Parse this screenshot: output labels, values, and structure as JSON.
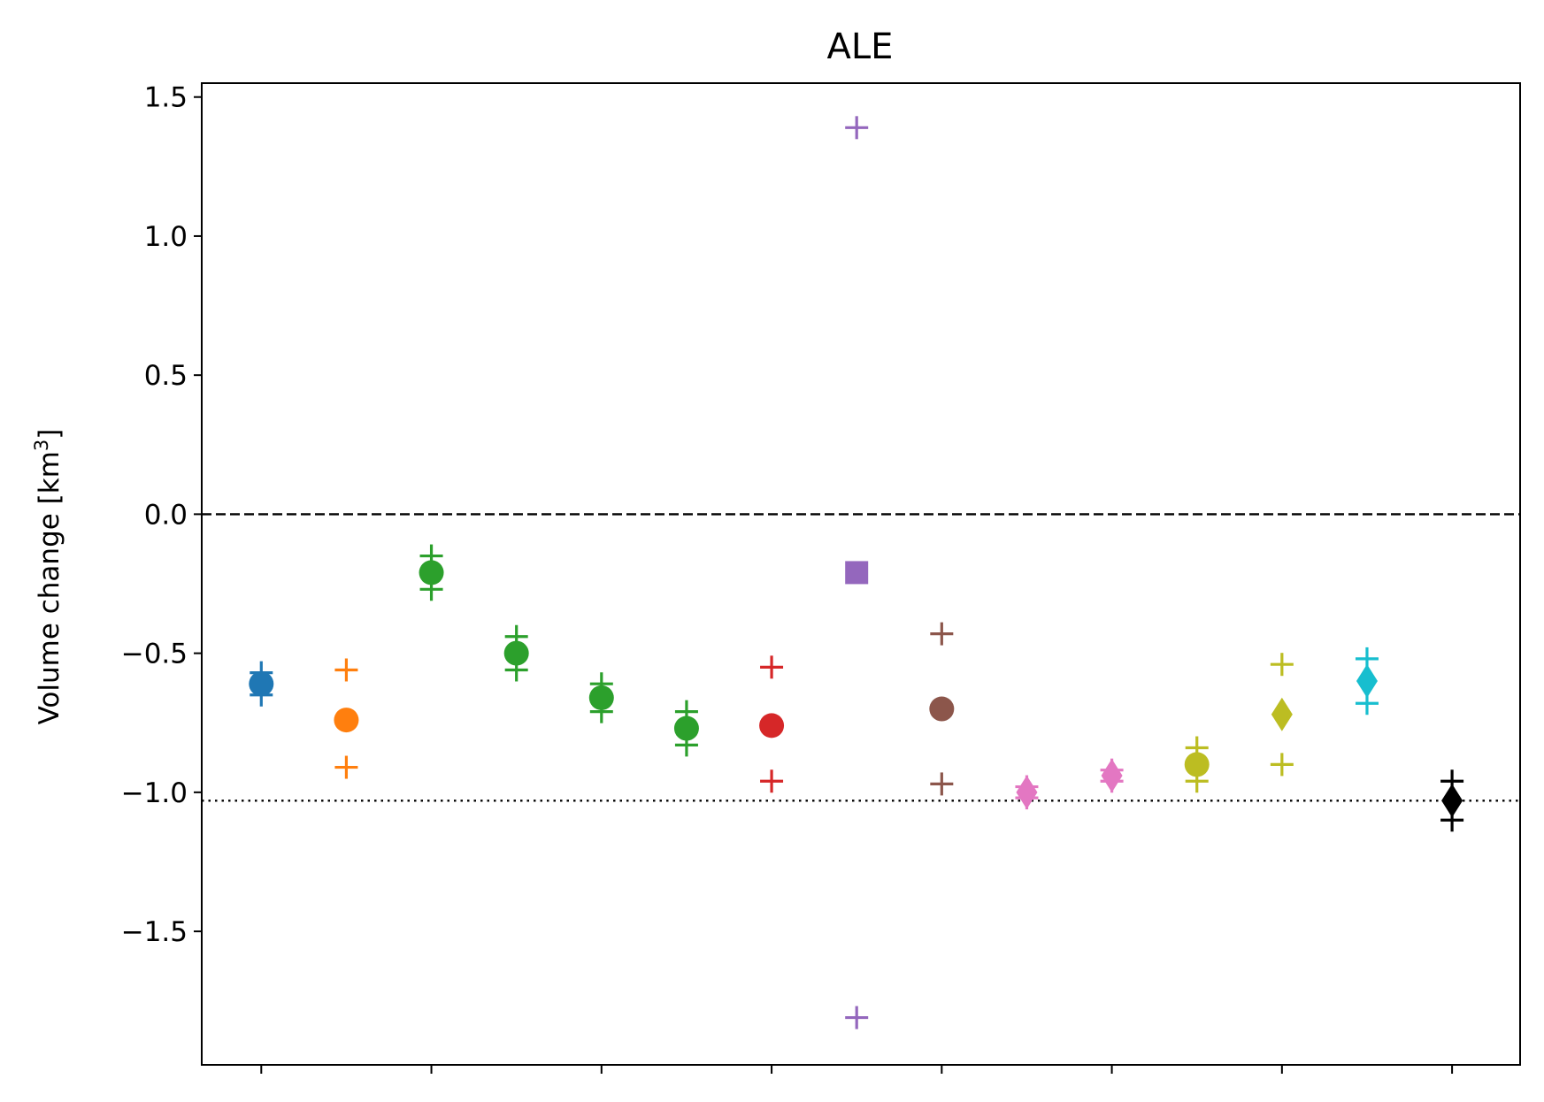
{
  "chart_data": {
    "type": "scatter",
    "title": "ALE",
    "xlabel": "",
    "ylabel": "Volume change [km³]",
    "ylabel_base": "Volume change [km",
    "ylabel_sup": "3",
    "ylabel_end": "]",
    "ylim": [
      -1.98,
      1.55
    ],
    "xlim": [
      -0.7,
      14.8
    ],
    "yticks": [
      1.5,
      1.0,
      0.5,
      0.0,
      -0.5,
      -1.0,
      -1.5
    ],
    "ytick_labels": [
      "1.5",
      "1.0",
      "0.5",
      "0.0",
      "−0.5",
      "−1.0",
      "−1.5"
    ],
    "xticks": [
      0,
      2,
      4,
      6,
      8,
      10,
      12,
      14
    ],
    "grid": false,
    "reference_lines": [
      {
        "style": "dashed",
        "y": 0.0
      },
      {
        "style": "dotted",
        "y": -1.03
      }
    ],
    "points": [
      {
        "x": 0,
        "y": -0.61,
        "marker": "circle",
        "color": "#1f77b4",
        "err": 0.04
      },
      {
        "x": 1,
        "y": -0.74,
        "marker": "circle",
        "color": "#ff7f0e",
        "upper": -0.56,
        "lower": -0.91
      },
      {
        "x": 2,
        "y": -0.21,
        "marker": "circle",
        "color": "#2ca02c",
        "err": 0.06
      },
      {
        "x": 3,
        "y": -0.5,
        "marker": "circle",
        "color": "#2ca02c",
        "err": 0.06
      },
      {
        "x": 4,
        "y": -0.66,
        "marker": "circle",
        "color": "#2ca02c",
        "err": 0.05
      },
      {
        "x": 5,
        "y": -0.77,
        "marker": "circle",
        "color": "#2ca02c",
        "err": 0.06
      },
      {
        "x": 6,
        "y": -0.76,
        "marker": "circle",
        "color": "#d62728",
        "upper": -0.55,
        "lower": -0.96
      },
      {
        "x": 7,
        "y": -0.21,
        "marker": "square",
        "color": "#9467bd",
        "upper": 1.39,
        "lower": -1.81
      },
      {
        "x": 8,
        "y": -0.7,
        "marker": "circle",
        "color": "#8c564b",
        "upper": -0.43,
        "lower": -0.97
      },
      {
        "x": 9,
        "y": -1.0,
        "marker": "diamond",
        "color": "#e377c2",
        "err": 0.02
      },
      {
        "x": 10,
        "y": -0.94,
        "marker": "diamond",
        "color": "#e377c2",
        "err": 0.02
      },
      {
        "x": 11,
        "y": -0.9,
        "marker": "circle",
        "color": "#bcbd22",
        "err": 0.06
      },
      {
        "x": 12,
        "y": -0.72,
        "marker": "diamond",
        "color": "#bcbd22",
        "upper": -0.54,
        "lower": -0.9
      },
      {
        "x": 13,
        "y": -0.6,
        "marker": "diamond",
        "color": "#17becf",
        "err": 0.08
      },
      {
        "x": 14,
        "y": -1.03,
        "marker": "diamond",
        "color": "#000000",
        "err": 0.07
      }
    ]
  }
}
